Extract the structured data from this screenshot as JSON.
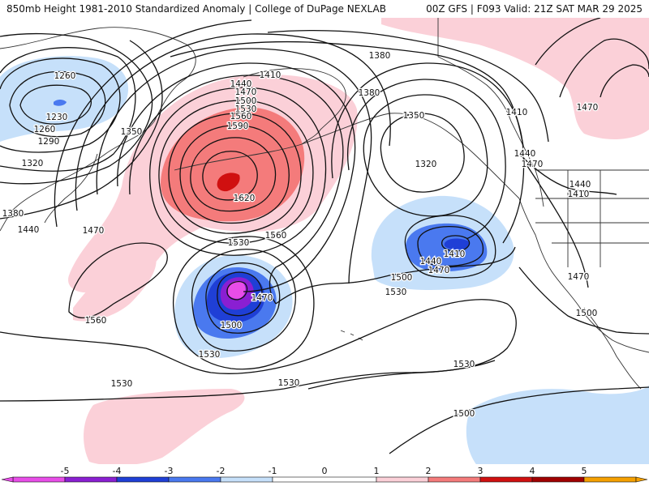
{
  "header": {
    "left_title": "850mb Height 1981-2010 Standardized Anomaly | College of DuPage NEXLAB",
    "right_title": "00Z GFS | F093 Valid: 21Z SAT MAR 29 2025"
  },
  "colors": {
    "neg5": "#e84de8",
    "neg4": "#8a1fd2",
    "neg3": "#1f3fd6",
    "neg2": "#4a79ef",
    "neg1": "#c6e0fa",
    "pos1": "#fbd0d8",
    "pos2": "#f47b7b",
    "pos3": "#d01010",
    "pos4": "#a00000",
    "pos5": "#f5a000",
    "contour": "#111111",
    "land": "#333333"
  },
  "contour_labels": [
    {
      "id": "l1",
      "text": "1260"
    },
    {
      "id": "l2",
      "text": "1230"
    },
    {
      "id": "l3",
      "text": "1260"
    },
    {
      "id": "l4",
      "text": "1290"
    },
    {
      "id": "l5",
      "text": "1320"
    },
    {
      "id": "l6",
      "text": "1350"
    },
    {
      "id": "l7",
      "text": "1380"
    },
    {
      "id": "l8",
      "text": "1440"
    },
    {
      "id": "l9",
      "text": "1470"
    },
    {
      "id": "l10",
      "text": "1410"
    },
    {
      "id": "l11",
      "text": "1440"
    },
    {
      "id": "l12",
      "text": "1470"
    },
    {
      "id": "l13",
      "text": "1500"
    },
    {
      "id": "l14",
      "text": "1530"
    },
    {
      "id": "l15",
      "text": "1560"
    },
    {
      "id": "l16",
      "text": "1590"
    },
    {
      "id": "l17",
      "text": "1620"
    },
    {
      "id": "l18",
      "text": "1560"
    },
    {
      "id": "l19",
      "text": "1530"
    },
    {
      "id": "l20",
      "text": "1470"
    },
    {
      "id": "l21",
      "text": "1500"
    },
    {
      "id": "l22",
      "text": "1530"
    },
    {
      "id": "l23",
      "text": "1560"
    },
    {
      "id": "l24",
      "text": "1530"
    },
    {
      "id": "l25",
      "text": "1530"
    },
    {
      "id": "l26",
      "text": "1380"
    },
    {
      "id": "l27",
      "text": "1380"
    },
    {
      "id": "l28",
      "text": "1350"
    },
    {
      "id": "l29",
      "text": "1320"
    },
    {
      "id": "l30",
      "text": "1410"
    },
    {
      "id": "l31",
      "text": "1440"
    },
    {
      "id": "l32",
      "text": "1470"
    },
    {
      "id": "l33",
      "text": "1500"
    },
    {
      "id": "l34",
      "text": "1530"
    },
    {
      "id": "l35",
      "text": "1410"
    },
    {
      "id": "l36",
      "text": "1440"
    },
    {
      "id": "l37",
      "text": "1470"
    },
    {
      "id": "l38",
      "text": "1440"
    },
    {
      "id": "l39",
      "text": "1410"
    },
    {
      "id": "l40",
      "text": "1470"
    },
    {
      "id": "l41",
      "text": "1500"
    },
    {
      "id": "l42",
      "text": "1530"
    },
    {
      "id": "l43",
      "text": "1500"
    },
    {
      "id": "l44",
      "text": "1470"
    }
  ],
  "colorbar": {
    "ticks": [
      "-5",
      "-4",
      "-3",
      "-2",
      "-1",
      "0",
      "1",
      "2",
      "3",
      "4",
      "5"
    ]
  }
}
